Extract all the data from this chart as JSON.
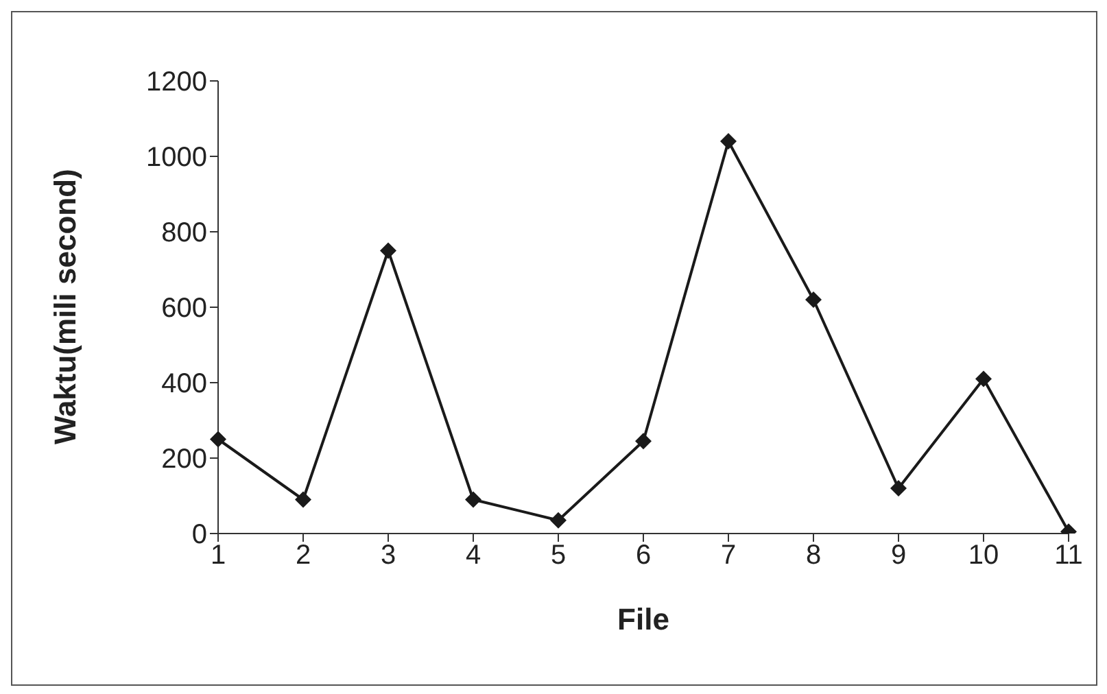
{
  "chart_data": {
    "type": "line",
    "xlabel": "File",
    "ylabel": "Waktu(mili second)",
    "categories": [
      "1",
      "2",
      "3",
      "4",
      "5",
      "6",
      "7",
      "8",
      "9",
      "10",
      "11"
    ],
    "values": [
      250,
      90,
      750,
      90,
      35,
      245,
      1040,
      620,
      120,
      410,
      5
    ],
    "color": "#1a1a1a",
    "ylim": [
      0,
      1200
    ],
    "yticks": [
      0,
      200,
      400,
      600,
      800,
      1000,
      1200
    ],
    "grid": false,
    "legend": false,
    "marker": "diamond",
    "line_style": "solid"
  }
}
